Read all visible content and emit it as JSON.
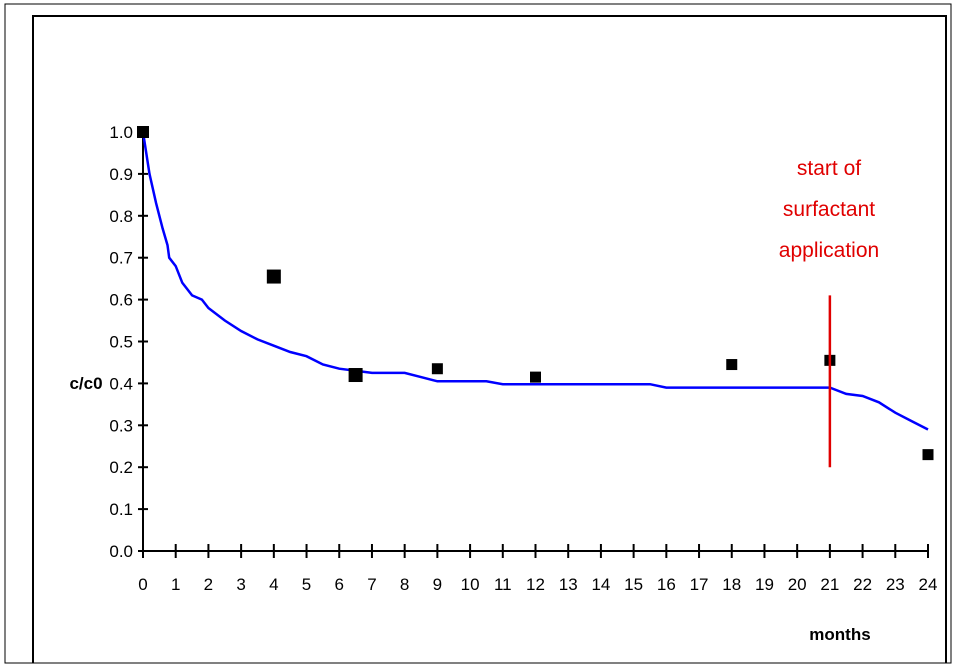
{
  "chart_data": {
    "type": "line",
    "xlabel": "months",
    "ylabel": "c/c0",
    "xlim": [
      0,
      24
    ],
    "ylim": [
      0,
      1.0
    ],
    "x_ticks": [
      0,
      1,
      2,
      3,
      4,
      5,
      6,
      7,
      8,
      9,
      10,
      11,
      12,
      13,
      14,
      15,
      16,
      17,
      18,
      19,
      20,
      21,
      22,
      23,
      24
    ],
    "y_ticks": [
      "0.0",
      "0.1",
      "0.2",
      "0.3",
      "0.4",
      "0.5",
      "0.6",
      "0.7",
      "0.8",
      "0.9",
      "1.0"
    ],
    "grid": false,
    "series": [
      {
        "kind": "line",
        "color": "#0000ff",
        "x": [
          0,
          0.2,
          0.4,
          0.6,
          0.75,
          0.8,
          1.0,
          1.2,
          1.5,
          1.8,
          2.0,
          2.5,
          3.0,
          3.5,
          4.0,
          4.5,
          5.0,
          5.5,
          6.0,
          6.5,
          7.0,
          7.5,
          8.0,
          8.5,
          9.0,
          9.5,
          10.0,
          10.5,
          11.0,
          11.5,
          12.0,
          13,
          14,
          15,
          15.5,
          16.0,
          17,
          18,
          19,
          20,
          21.0,
          21.5,
          22.0,
          22.5,
          23.0,
          23.5,
          24.0
        ],
        "y": [
          1.0,
          0.9,
          0.83,
          0.77,
          0.73,
          0.7,
          0.68,
          0.64,
          0.61,
          0.6,
          0.58,
          0.55,
          0.525,
          0.505,
          0.49,
          0.475,
          0.465,
          0.445,
          0.435,
          0.43,
          0.425,
          0.425,
          0.425,
          0.415,
          0.405,
          0.405,
          0.405,
          0.405,
          0.398,
          0.398,
          0.398,
          0.398,
          0.398,
          0.398,
          0.398,
          0.39,
          0.39,
          0.39,
          0.39,
          0.39,
          0.39,
          0.375,
          0.37,
          0.355,
          0.33,
          0.31,
          0.29
        ]
      },
      {
        "kind": "scatter",
        "color": "#000000",
        "x": [
          0,
          4,
          6.5,
          9,
          12,
          18,
          21,
          24
        ],
        "y": [
          1.0,
          0.655,
          0.42,
          0.435,
          0.415,
          0.445,
          0.455,
          0.23
        ],
        "sizes": [
          12,
          14,
          14,
          11,
          11,
          11,
          11,
          11
        ]
      }
    ],
    "marker_line": {
      "x": 21,
      "y_range": [
        0.2,
        0.61
      ],
      "color": "#e00000"
    },
    "annotation": {
      "lines": [
        "start of",
        "surfactant",
        "application"
      ],
      "color": "#e00000"
    }
  }
}
